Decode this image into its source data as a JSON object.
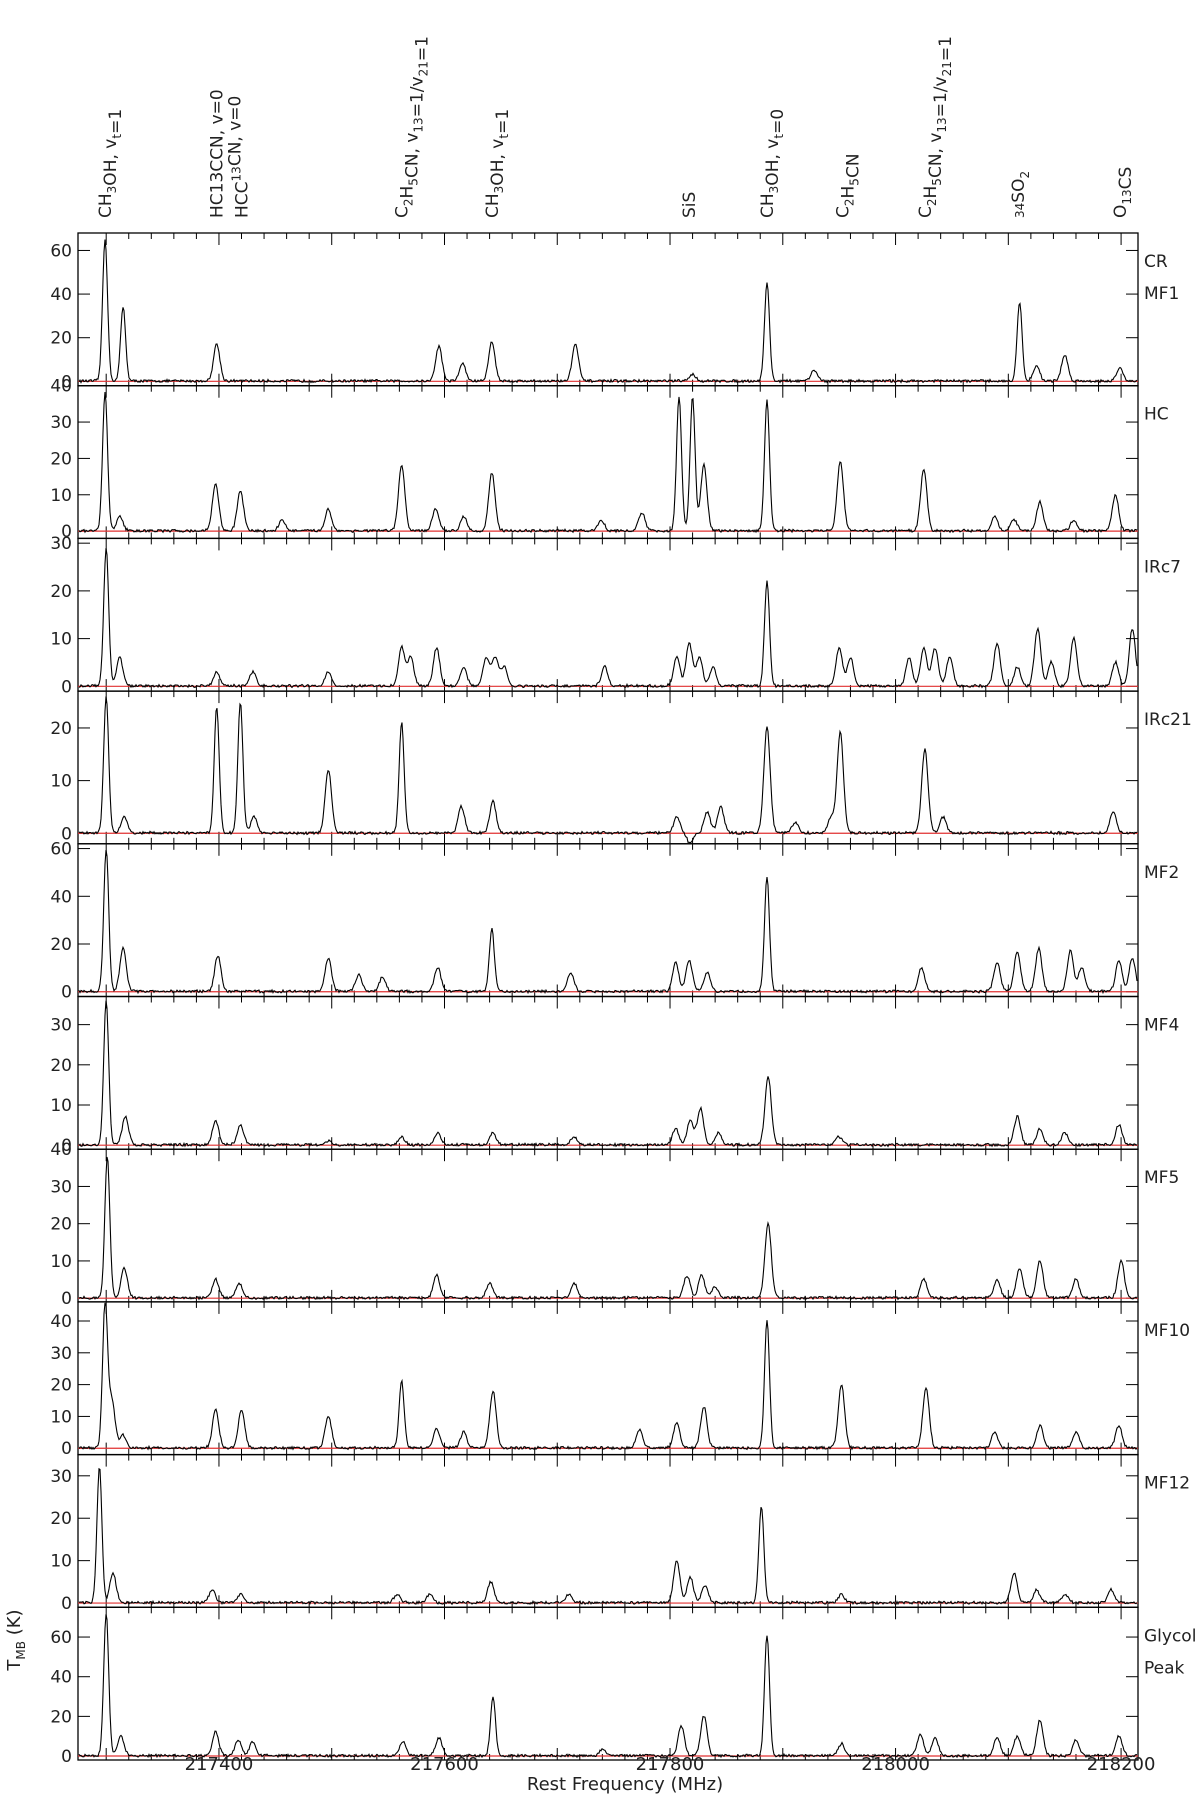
{
  "figure": {
    "xlabel": "Rest Frequency (MHz)",
    "ylabel": "T_MB (K)",
    "x_ticks": [
      "217400",
      "217600",
      "217800",
      "218000",
      "218200"
    ]
  },
  "line_ids": [
    {
      "label": "CH3OH, vt=1",
      "freq": 217299
    },
    {
      "label": "HC13CCN, v=0",
      "freq": 217398
    },
    {
      "label": "HCC13CN, v=0",
      "freq": 217420
    },
    {
      "label": "C2H5CN, v13=1/v21=1",
      "freq": 217562
    },
    {
      "label": "CH3OH, vt=1",
      "freq": 217642
    },
    {
      "label": "SiS",
      "freq": 217817
    },
    {
      "label": "CH3OH, vt=0",
      "freq": 217886
    },
    {
      "label": "C2H5CN",
      "freq": 217953
    },
    {
      "label": "C2H5CN, v13=1/v21=1",
      "freq": 218026
    },
    {
      "label": "34SO2",
      "freq": 218115
    },
    {
      "label": "O13CS",
      "freq": 218199
    }
  ],
  "chart_data": [
    {
      "type": "line",
      "panel": "CR MF1",
      "ylim": [
        -2,
        68
      ],
      "yticks": [
        0,
        20,
        40,
        60
      ],
      "peaks": [
        [
          217299,
          65
        ],
        [
          217315,
          34
        ],
        [
          217398,
          17
        ],
        [
          217595,
          16
        ],
        [
          217616,
          8
        ],
        [
          217642,
          18
        ],
        [
          217716,
          17
        ],
        [
          217820,
          3
        ],
        [
          217886,
          45
        ],
        [
          217928,
          5
        ],
        [
          218110,
          36
        ],
        [
          218125,
          7
        ],
        [
          218150,
          12
        ],
        [
          218199,
          6
        ]
      ]
    },
    {
      "type": "line",
      "panel": "HC",
      "ylim": [
        -2,
        40
      ],
      "yticks": [
        0,
        10,
        20,
        30,
        40
      ],
      "peaks": [
        [
          217299,
          38
        ],
        [
          217312,
          4
        ],
        [
          217397,
          13
        ],
        [
          217419,
          11
        ],
        [
          217456,
          3
        ],
        [
          217497,
          6
        ],
        [
          217562,
          18
        ],
        [
          217592,
          6
        ],
        [
          217617,
          4
        ],
        [
          217642,
          16
        ],
        [
          217739,
          3
        ],
        [
          217775,
          5
        ],
        [
          217808,
          37
        ],
        [
          217820,
          37
        ],
        [
          217830,
          18
        ],
        [
          217886,
          36
        ],
        [
          217951,
          19
        ],
        [
          218025,
          17
        ],
        [
          218088,
          4
        ],
        [
          218105,
          3
        ],
        [
          218128,
          8
        ],
        [
          218158,
          3
        ],
        [
          218195,
          10
        ]
      ]
    },
    {
      "type": "line",
      "panel": "IRc7",
      "ylim": [
        -1,
        31
      ],
      "yticks": [
        0,
        10,
        20,
        30
      ],
      "peaks": [
        [
          217300,
          29
        ],
        [
          217312,
          6
        ],
        [
          217398,
          3
        ],
        [
          217430,
          3
        ],
        [
          217497,
          3
        ],
        [
          217562,
          8
        ],
        [
          217570,
          6
        ],
        [
          217593,
          8
        ],
        [
          217617,
          4
        ],
        [
          217637,
          6
        ],
        [
          217645,
          6
        ],
        [
          217653,
          4
        ],
        [
          217742,
          4
        ],
        [
          217806,
          6
        ],
        [
          217817,
          9
        ],
        [
          217826,
          6
        ],
        [
          217838,
          4
        ],
        [
          217886,
          22
        ],
        [
          217950,
          8
        ],
        [
          217960,
          6
        ],
        [
          218012,
          6
        ],
        [
          218025,
          8
        ],
        [
          218035,
          8
        ],
        [
          218048,
          6
        ],
        [
          218090,
          9
        ],
        [
          218108,
          4
        ],
        [
          218126,
          12
        ],
        [
          218138,
          5
        ],
        [
          218158,
          10
        ],
        [
          218195,
          5
        ],
        [
          218210,
          12
        ]
      ]
    },
    {
      "type": "line",
      "panel": "IRc21",
      "ylim": [
        -2,
        27
      ],
      "yticks": [
        0,
        10,
        20
      ],
      "peaks": [
        [
          217300,
          26
        ],
        [
          217316,
          3
        ],
        [
          217398,
          24
        ],
        [
          217419,
          25
        ],
        [
          217431,
          3
        ],
        [
          217497,
          12
        ],
        [
          217562,
          21
        ],
        [
          217615,
          5
        ],
        [
          217643,
          6
        ],
        [
          217806,
          3
        ],
        [
          217818,
          -2
        ],
        [
          217833,
          4
        ],
        [
          217845,
          5
        ],
        [
          217886,
          20
        ],
        [
          217911,
          2
        ],
        [
          217943,
          3
        ],
        [
          217951,
          19
        ],
        [
          218026,
          16
        ],
        [
          218042,
          3
        ],
        [
          218193,
          4
        ]
      ]
    },
    {
      "type": "line",
      "panel": "MF2",
      "ylim": [
        -2,
        62
      ],
      "yticks": [
        0,
        20,
        40,
        60
      ],
      "peaks": [
        [
          217300,
          60
        ],
        [
          217315,
          18
        ],
        [
          217399,
          15
        ],
        [
          217497,
          14
        ],
        [
          217524,
          7
        ],
        [
          217545,
          6
        ],
        [
          217594,
          10
        ],
        [
          217642,
          26
        ],
        [
          217712,
          8
        ],
        [
          217805,
          12
        ],
        [
          217817,
          13
        ],
        [
          217833,
          8
        ],
        [
          217886,
          48
        ],
        [
          218023,
          10
        ],
        [
          218090,
          12
        ],
        [
          218108,
          17
        ],
        [
          218127,
          18
        ],
        [
          218155,
          17
        ],
        [
          218165,
          10
        ],
        [
          218198,
          13
        ],
        [
          218210,
          14
        ]
      ]
    },
    {
      "type": "line",
      "panel": "MF4",
      "ylim": [
        -1,
        37
      ],
      "yticks": [
        0,
        10,
        20,
        30
      ],
      "peaks": [
        [
          217300,
          36
        ],
        [
          217317,
          7
        ],
        [
          217397,
          6
        ],
        [
          217419,
          5
        ],
        [
          217497,
          1
        ],
        [
          217562,
          2
        ],
        [
          217594,
          3
        ],
        [
          217643,
          3
        ],
        [
          217715,
          2
        ],
        [
          217805,
          4
        ],
        [
          217818,
          6
        ],
        [
          217827,
          9
        ],
        [
          217843,
          3
        ],
        [
          217887,
          17
        ],
        [
          217950,
          2
        ],
        [
          218108,
          7
        ],
        [
          218128,
          4
        ],
        [
          218150,
          3
        ],
        [
          218198,
          5
        ]
      ]
    },
    {
      "type": "line",
      "panel": "MF5",
      "ylim": [
        -1,
        40
      ],
      "yticks": [
        0,
        10,
        20,
        30,
        40
      ],
      "peaks": [
        [
          217301,
          38
        ],
        [
          217316,
          8
        ],
        [
          217397,
          5
        ],
        [
          217418,
          4
        ],
        [
          217593,
          6
        ],
        [
          217640,
          4
        ],
        [
          217715,
          4
        ],
        [
          217815,
          6
        ],
        [
          217828,
          6
        ],
        [
          217840,
          3
        ],
        [
          217887,
          20
        ],
        [
          218025,
          5
        ],
        [
          218090,
          5
        ],
        [
          218110,
          8
        ],
        [
          218128,
          10
        ],
        [
          218160,
          5
        ],
        [
          218200,
          10
        ]
      ]
    },
    {
      "type": "line",
      "panel": "MF10",
      "ylim": [
        -2,
        46
      ],
      "yticks": [
        0,
        10,
        20,
        30,
        40
      ],
      "peaks": [
        [
          217299,
          45
        ],
        [
          217305,
          15
        ],
        [
          217315,
          4
        ],
        [
          217397,
          12
        ],
        [
          217420,
          12
        ],
        [
          217497,
          10
        ],
        [
          217562,
          21
        ],
        [
          217593,
          6
        ],
        [
          217617,
          5
        ],
        [
          217643,
          18
        ],
        [
          217773,
          6
        ],
        [
          217806,
          8
        ],
        [
          217830,
          13
        ],
        [
          217886,
          40
        ],
        [
          217952,
          20
        ],
        [
          218027,
          19
        ],
        [
          218088,
          5
        ],
        [
          218128,
          7
        ],
        [
          218160,
          5
        ],
        [
          218198,
          7
        ]
      ]
    },
    {
      "type": "line",
      "panel": "MF12",
      "ylim": [
        -1,
        35
      ],
      "yticks": [
        0,
        10,
        20,
        30
      ],
      "peaks": [
        [
          217294,
          32
        ],
        [
          217306,
          7
        ],
        [
          217394,
          3
        ],
        [
          217419,
          2
        ],
        [
          217558,
          2
        ],
        [
          217587,
          2
        ],
        [
          217641,
          5
        ],
        [
          217710,
          2
        ],
        [
          217806,
          10
        ],
        [
          217818,
          6
        ],
        [
          217831,
          4
        ],
        [
          217881,
          23
        ],
        [
          217952,
          2
        ],
        [
          218105,
          7
        ],
        [
          218125,
          3
        ],
        [
          218150,
          2
        ],
        [
          218191,
          3
        ]
      ]
    },
    {
      "type": "line",
      "panel": "Glycol Peak",
      "ylim": [
        -2,
        75
      ],
      "yticks": [
        0,
        20,
        40,
        60
      ],
      "peaks": [
        [
          217300,
          72
        ],
        [
          217313,
          10
        ],
        [
          217397,
          12
        ],
        [
          217417,
          8
        ],
        [
          217430,
          7
        ],
        [
          217563,
          7
        ],
        [
          217595,
          9
        ],
        [
          217643,
          30
        ],
        [
          217740,
          3
        ],
        [
          217810,
          15
        ],
        [
          217830,
          20
        ],
        [
          217886,
          61
        ],
        [
          217952,
          6
        ],
        [
          218022,
          11
        ],
        [
          218035,
          9
        ],
        [
          218090,
          9
        ],
        [
          218108,
          10
        ],
        [
          218128,
          18
        ],
        [
          218160,
          8
        ],
        [
          218198,
          10
        ]
      ]
    }
  ]
}
